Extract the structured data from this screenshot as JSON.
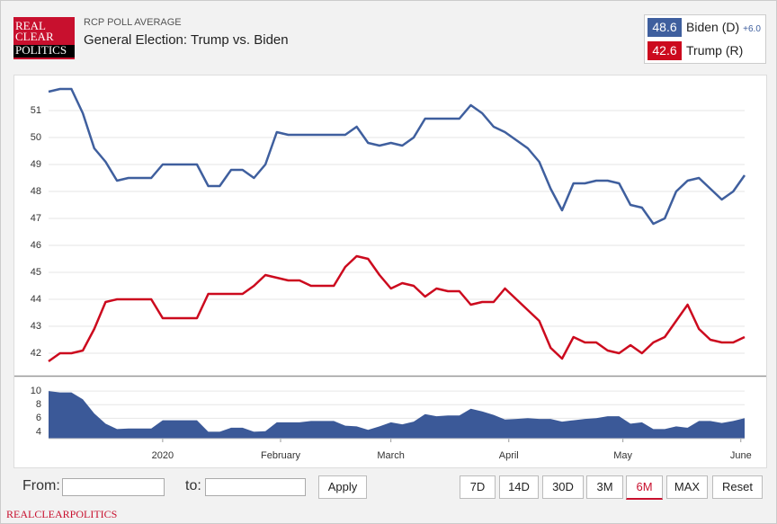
{
  "ui": {
    "logo": [
      "REAL",
      "CLEAR",
      "POLITICS"
    ],
    "kicker": "RCP POLL AVERAGE",
    "title": "General Election: Trump vs. Biden",
    "spread_label": "+6.0",
    "from": "From:",
    "to": "to:",
    "apply": "Apply",
    "ranges": [
      "7D",
      "14D",
      "30D",
      "3M",
      "6M",
      "MAX",
      "Reset"
    ],
    "active_range": "6M",
    "footer": "REALCLEARPOLITICS"
  },
  "chart_data": [
    {
      "type": "line",
      "x": [
        -30,
        -27,
        -24,
        -21,
        -18,
        -15,
        -12,
        -9,
        -6,
        -3,
        0,
        3,
        6,
        9,
        12,
        15,
        18,
        21,
        24,
        27,
        30,
        33,
        36,
        39,
        42,
        45,
        48,
        51,
        54,
        57,
        60,
        63,
        66,
        69,
        72,
        75,
        78,
        81,
        84,
        87,
        90,
        93,
        96,
        99,
        102,
        105,
        108,
        111,
        114,
        117,
        120,
        123,
        126,
        129,
        132,
        135,
        138,
        141,
        144,
        147,
        150,
        153
      ],
      "xlim": [
        -30,
        153
      ],
      "ylim": [
        41.2,
        52.3
      ],
      "yticks": [
        42,
        43,
        44,
        45,
        46,
        47,
        48,
        49,
        50,
        51
      ],
      "grid": true,
      "series": [
        {
          "name": "Biden (D)",
          "color": "#3f5f9e",
          "latest": 48.6,
          "values": [
            51.7,
            51.8,
            51.8,
            50.9,
            49.6,
            49.1,
            48.4,
            48.5,
            48.5,
            48.5,
            49.0,
            49.0,
            49.0,
            49.0,
            48.2,
            48.2,
            48.8,
            48.8,
            48.5,
            49.0,
            50.2,
            50.1,
            50.1,
            50.1,
            50.1,
            50.1,
            50.1,
            50.4,
            49.8,
            49.7,
            49.8,
            49.7,
            50.0,
            50.7,
            50.7,
            50.7,
            50.7,
            51.2,
            50.9,
            50.4,
            50.2,
            49.9,
            49.6,
            49.1,
            48.1,
            47.3,
            48.3,
            48.3,
            48.4,
            48.4,
            48.3,
            47.5,
            47.4,
            46.8,
            47.0,
            48.0,
            48.4,
            48.5,
            48.1,
            47.7,
            48.0,
            48.6
          ]
        },
        {
          "name": "Trump (R)",
          "color": "#cc0a1e",
          "latest": 42.6,
          "values": [
            41.7,
            42.0,
            42.0,
            42.1,
            42.9,
            43.9,
            44.0,
            44.0,
            44.0,
            44.0,
            43.3,
            43.3,
            43.3,
            43.3,
            44.2,
            44.2,
            44.2,
            44.2,
            44.5,
            44.9,
            44.8,
            44.7,
            44.7,
            44.5,
            44.5,
            44.5,
            45.2,
            45.6,
            45.5,
            44.9,
            44.4,
            44.6,
            44.5,
            44.1,
            44.4,
            44.3,
            44.3,
            43.8,
            43.9,
            43.9,
            44.4,
            44.0,
            43.6,
            43.2,
            42.2,
            41.8,
            42.6,
            42.4,
            42.4,
            42.1,
            42.0,
            42.3,
            42.0,
            42.4,
            42.6,
            43.2,
            43.8,
            42.9,
            42.5,
            42.4,
            42.4,
            42.6
          ]
        }
      ]
    },
    {
      "type": "area",
      "x": [
        -30,
        -27,
        -24,
        -21,
        -18,
        -15,
        -12,
        -9,
        -6,
        -3,
        0,
        3,
        6,
        9,
        12,
        15,
        18,
        21,
        24,
        27,
        30,
        33,
        36,
        39,
        42,
        45,
        48,
        51,
        54,
        57,
        60,
        63,
        66,
        69,
        72,
        75,
        78,
        81,
        84,
        87,
        90,
        93,
        96,
        99,
        102,
        105,
        108,
        111,
        114,
        117,
        120,
        123,
        126,
        129,
        132,
        135,
        138,
        141,
        144,
        147,
        150,
        153
      ],
      "color": "#3b5998",
      "xlim": [
        -30,
        153
      ],
      "ylim": [
        3,
        12
      ],
      "yticks": [
        4,
        6,
        8,
        10
      ],
      "xticks": [
        {
          "value": 0,
          "label": "2020"
        },
        {
          "value": 31,
          "label": "February"
        },
        {
          "value": 60,
          "label": "March"
        },
        {
          "value": 91,
          "label": "April"
        },
        {
          "value": 121,
          "label": "May"
        },
        {
          "value": 152,
          "label": "June"
        }
      ],
      "values": [
        10.0,
        9.8,
        9.8,
        8.8,
        6.7,
        5.2,
        4.4,
        4.5,
        4.5,
        4.5,
        5.7,
        5.7,
        5.7,
        5.7,
        4.0,
        4.0,
        4.6,
        4.6,
        4.0,
        4.1,
        5.4,
        5.4,
        5.4,
        5.6,
        5.6,
        5.6,
        4.9,
        4.8,
        4.3,
        4.8,
        5.4,
        5.1,
        5.5,
        6.6,
        6.3,
        6.4,
        6.4,
        7.4,
        7.0,
        6.5,
        5.8,
        5.9,
        6.0,
        5.9,
        5.9,
        5.5,
        5.7,
        5.9,
        6.0,
        6.3,
        6.3,
        5.2,
        5.4,
        4.4,
        4.4,
        4.8,
        4.6,
        5.6,
        5.6,
        5.3,
        5.6,
        6.0
      ]
    }
  ]
}
